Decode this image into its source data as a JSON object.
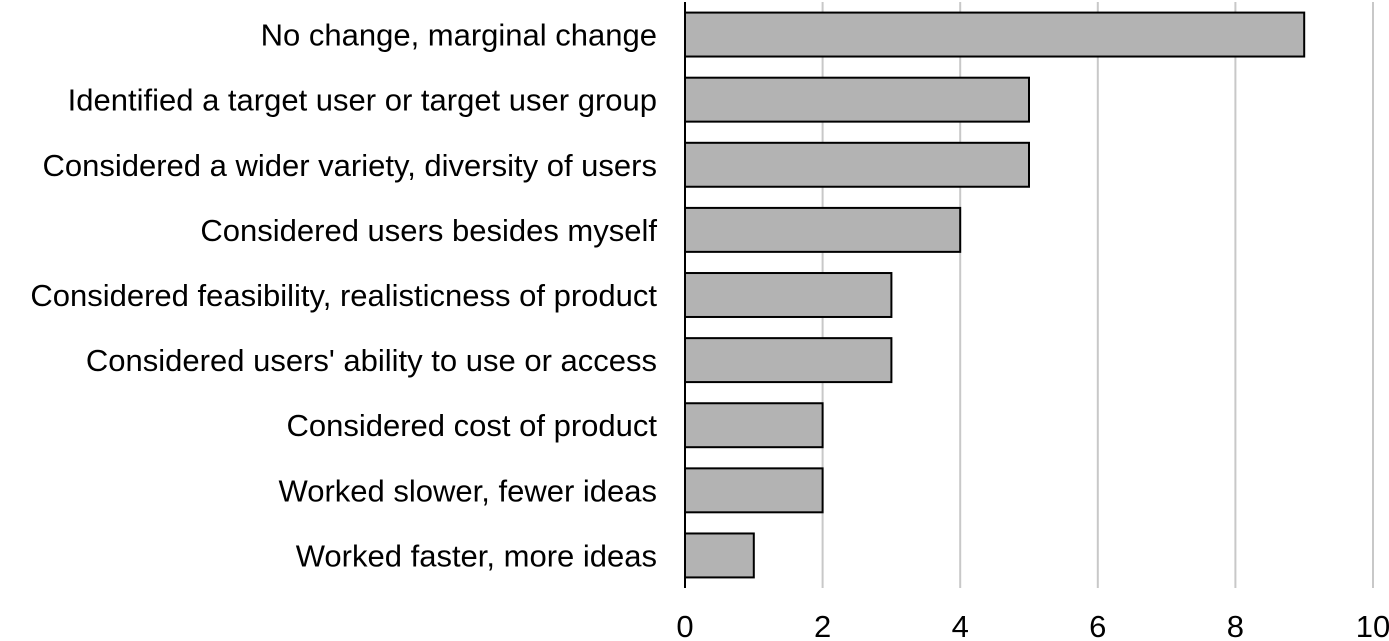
{
  "chart_data": {
    "type": "bar",
    "orientation": "horizontal",
    "categories": [
      "No change, marginal change",
      "Identified a target user or target user group",
      "Considered a wider variety, diversity of users",
      "Considered users besides myself",
      "Considered feasibility, realisticness of product",
      "Considered users' ability to use or access",
      "Considered cost of product",
      "Worked slower, fewer ideas",
      "Worked faster, more ideas"
    ],
    "values": [
      9,
      5,
      5,
      4,
      3,
      3,
      2,
      2,
      1
    ],
    "xlim": [
      0,
      10
    ],
    "xticks": [
      "0",
      "2",
      "4",
      "6",
      "8",
      "10"
    ],
    "title": "",
    "xlabel": "",
    "ylabel": "",
    "grid": "vertical",
    "bar_color": "#b3b3b3",
    "edge_color": "#000000"
  }
}
